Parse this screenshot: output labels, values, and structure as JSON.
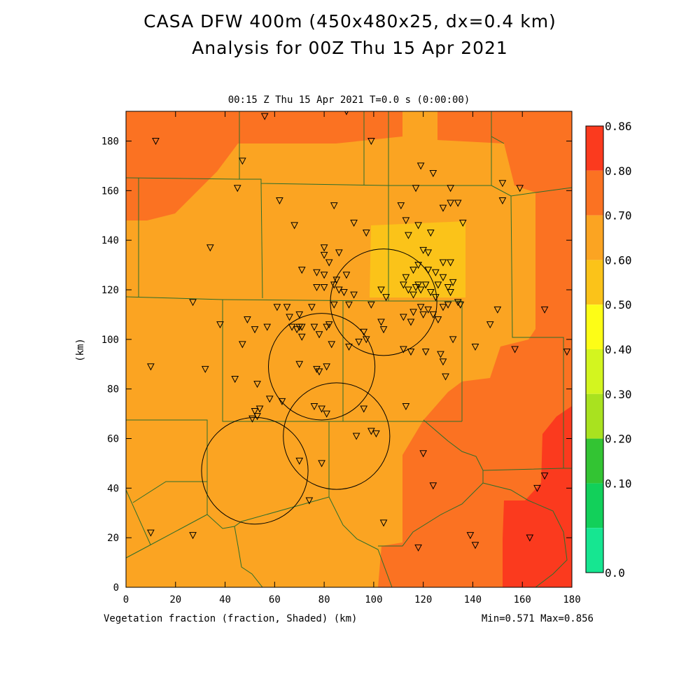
{
  "title_line1": "CASA DFW 400m (450x480x25, dx=0.4 km)",
  "title_line2": "Analysis for 00Z Thu 15 Apr 2021",
  "subtitle": "00:15 Z Thu 15 Apr 2021   T=0.0 s (0:00:00)",
  "field_label": "Vegetation fraction (fraction, Shaded)  (km)",
  "minmax": "Min=0.571 Max=0.856",
  "y_axis_label": "(km)",
  "x_ticks": [
    "0",
    "20",
    "40",
    "60",
    "80",
    "100",
    "120",
    "140",
    "160",
    "180"
  ],
  "y_ticks": [
    "0",
    "20",
    "40",
    "60",
    "80",
    "100",
    "120",
    "140",
    "160",
    "180"
  ],
  "colors": {
    "c50_60": "#fbc319",
    "c60_70": "#fba422",
    "c70_80": "#fb7222",
    "c80_86": "#fb3a1e",
    "boundary": "#2c6e2c",
    "radar": "#000000"
  },
  "colorbar": {
    "labels": [
      "0.86",
      "0.80",
      "0.70",
      "0.60",
      "0.50",
      "0.40",
      "0.30",
      "0.20",
      "0.10",
      "0.0"
    ],
    "colors": [
      "#fb3a1e",
      "#fb7222",
      "#fba422",
      "#fbc319",
      "#fdfd16",
      "#d3f51f",
      "#a9e21f",
      "#33c433",
      "#12d05a",
      "#16e691"
    ]
  },
  "radars": [
    {
      "name": "radar-ring-1",
      "cx": 52,
      "cy": 47,
      "r": 21.5
    },
    {
      "name": "radar-ring-2",
      "cx": 79,
      "cy": 89,
      "r": 21.5
    },
    {
      "name": "radar-ring-3",
      "cx": 104,
      "cy": 115,
      "r": 21.5
    },
    {
      "name": "radar-ring-4",
      "cx": 85,
      "cy": 61,
      "r": 21.5
    }
  ],
  "stations": [
    [
      12,
      180
    ],
    [
      56,
      190
    ],
    [
      89,
      192
    ],
    [
      99,
      180
    ],
    [
      47,
      172
    ],
    [
      45,
      161
    ],
    [
      62,
      156
    ],
    [
      84,
      154
    ],
    [
      68,
      146
    ],
    [
      34,
      137
    ],
    [
      111,
      154
    ],
    [
      117,
      161
    ],
    [
      119,
      170
    ],
    [
      124,
      167
    ],
    [
      128,
      153
    ],
    [
      131,
      155
    ],
    [
      134,
      155
    ],
    [
      136,
      147
    ],
    [
      131,
      161
    ],
    [
      152,
      163
    ],
    [
      152,
      156
    ],
    [
      159,
      161
    ],
    [
      113,
      148
    ],
    [
      118,
      146
    ],
    [
      123,
      143
    ],
    [
      120,
      136
    ],
    [
      114,
      142
    ],
    [
      92,
      147
    ],
    [
      97,
      143
    ],
    [
      80,
      137
    ],
    [
      86,
      135
    ],
    [
      80,
      134
    ],
    [
      82,
      131
    ],
    [
      77,
      127
    ],
    [
      71,
      128
    ],
    [
      80,
      126
    ],
    [
      85,
      124
    ],
    [
      84,
      122
    ],
    [
      88,
      119
    ],
    [
      89,
      126
    ],
    [
      77,
      121
    ],
    [
      80,
      121
    ],
    [
      86,
      120
    ],
    [
      92,
      118
    ],
    [
      103,
      120
    ],
    [
      105,
      117
    ],
    [
      113,
      125
    ],
    [
      112,
      122
    ],
    [
      114,
      120
    ],
    [
      117,
      121
    ],
    [
      118,
      122
    ],
    [
      119,
      120
    ],
    [
      121,
      122
    ],
    [
      123,
      119
    ],
    [
      125,
      117
    ],
    [
      126,
      122
    ],
    [
      128,
      125
    ],
    [
      130,
      121
    ],
    [
      131,
      119
    ],
    [
      132,
      123
    ],
    [
      134,
      115
    ],
    [
      135,
      114
    ],
    [
      128,
      113
    ],
    [
      130,
      114
    ],
    [
      118,
      130
    ],
    [
      116,
      128
    ],
    [
      122,
      135
    ],
    [
      125,
      127
    ],
    [
      128,
      131
    ],
    [
      131,
      131
    ],
    [
      122,
      128
    ],
    [
      116,
      118
    ],
    [
      119,
      113
    ],
    [
      122,
      112
    ],
    [
      124,
      110
    ],
    [
      126,
      108
    ],
    [
      120,
      110
    ],
    [
      116,
      111
    ],
    [
      115,
      107
    ],
    [
      112,
      109
    ],
    [
      103,
      107
    ],
    [
      99,
      114
    ],
    [
      90,
      114
    ],
    [
      84,
      114
    ],
    [
      75,
      113
    ],
    [
      70,
      110
    ],
    [
      65,
      113
    ],
    [
      61,
      113
    ],
    [
      57,
      105
    ],
    [
      52,
      104
    ],
    [
      47,
      98
    ],
    [
      49,
      108
    ],
    [
      38,
      106
    ],
    [
      27,
      115
    ],
    [
      10,
      89
    ],
    [
      32,
      88
    ],
    [
      66,
      109
    ],
    [
      69,
      104
    ],
    [
      67,
      105
    ],
    [
      70,
      105
    ],
    [
      71,
      105
    ],
    [
      76,
      105
    ],
    [
      81,
      105
    ],
    [
      82,
      106
    ],
    [
      71,
      101
    ],
    [
      78,
      102
    ],
    [
      83,
      98
    ],
    [
      90,
      97
    ],
    [
      94,
      99
    ],
    [
      97,
      100
    ],
    [
      96,
      103
    ],
    [
      104,
      104
    ],
    [
      112,
      96
    ],
    [
      115,
      95
    ],
    [
      121,
      95
    ],
    [
      127,
      94
    ],
    [
      128,
      91
    ],
    [
      129,
      85
    ],
    [
      132,
      100
    ],
    [
      141,
      97
    ],
    [
      147,
      106
    ],
    [
      150,
      112
    ],
    [
      157,
      96
    ],
    [
      169,
      112
    ],
    [
      178,
      95
    ],
    [
      70,
      90
    ],
    [
      77,
      88
    ],
    [
      78,
      87
    ],
    [
      81,
      89
    ],
    [
      44,
      84
    ],
    [
      53,
      82
    ],
    [
      58,
      76
    ],
    [
      63,
      75
    ],
    [
      54,
      72
    ],
    [
      52,
      71
    ],
    [
      51,
      68
    ],
    [
      53,
      69
    ],
    [
      76,
      73
    ],
    [
      79,
      72
    ],
    [
      81,
      70
    ],
    [
      96,
      72
    ],
    [
      99,
      63
    ],
    [
      101,
      62
    ],
    [
      93,
      61
    ],
    [
      113,
      73
    ],
    [
      120,
      54
    ],
    [
      124,
      41
    ],
    [
      139,
      21
    ],
    [
      141,
      17
    ],
    [
      163,
      20
    ],
    [
      166,
      40
    ],
    [
      169,
      45
    ],
    [
      118,
      16
    ],
    [
      104,
      26
    ],
    [
      70,
      51
    ],
    [
      79,
      50
    ],
    [
      74,
      35
    ],
    [
      27,
      21
    ],
    [
      10,
      22
    ]
  ]
}
